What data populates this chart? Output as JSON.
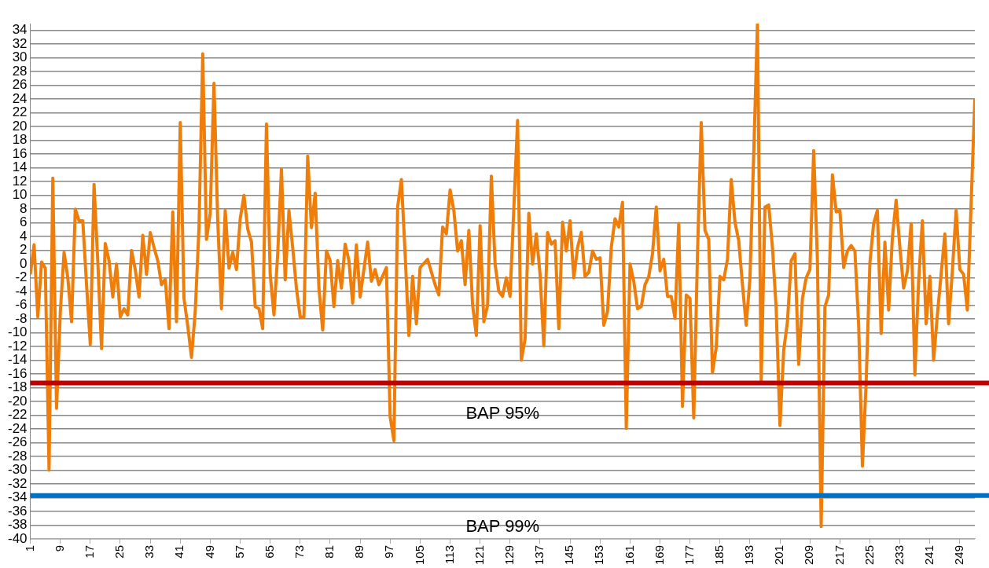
{
  "chart_data": {
    "type": "line",
    "color": "#ef7d0a",
    "x": [
      1,
      2,
      3,
      4,
      5,
      6,
      7,
      8,
      9,
      10,
      11,
      12,
      13,
      14,
      15,
      16,
      17,
      18,
      19,
      20,
      21,
      22,
      23,
      24,
      25,
      26,
      27,
      28,
      29,
      30,
      31,
      32,
      33,
      34,
      35,
      36,
      37,
      38,
      39,
      40,
      41,
      42,
      43,
      44,
      45,
      46,
      47,
      48,
      49,
      50,
      51,
      52,
      53,
      54,
      55,
      56,
      57,
      58,
      59,
      60,
      61,
      62,
      63,
      64,
      65,
      66,
      67,
      68,
      69,
      70,
      71,
      72,
      73,
      74,
      75,
      76,
      77,
      78,
      79,
      80,
      81,
      82,
      83,
      84,
      85,
      86,
      87,
      88,
      89,
      91,
      92,
      93,
      94,
      96,
      97,
      98,
      99,
      100,
      101,
      102,
      103,
      104,
      105,
      107,
      109,
      110,
      111,
      112,
      113,
      114,
      115,
      116,
      117,
      118,
      119,
      120,
      121,
      122,
      123,
      124,
      125,
      126,
      127,
      128,
      129,
      131,
      132,
      133,
      134,
      135,
      136,
      137,
      138,
      139,
      140,
      141,
      142,
      143,
      144,
      145,
      146,
      147,
      148,
      149,
      150,
      151,
      152,
      153,
      154,
      155,
      156,
      157,
      158,
      159,
      160,
      161,
      162,
      163,
      164,
      165,
      166,
      167,
      168,
      169,
      170,
      171,
      172,
      173,
      174,
      175,
      176,
      177,
      178,
      179,
      180,
      181,
      182,
      183,
      184,
      185,
      186,
      187,
      188,
      189,
      190,
      191,
      192,
      193,
      194,
      195,
      196,
      197,
      198,
      199,
      200,
      201,
      202,
      203,
      204,
      205,
      206,
      207,
      208,
      209,
      210,
      211,
      212,
      213,
      214,
      215,
      216,
      217,
      218,
      219,
      220,
      221,
      222,
      223,
      224,
      225,
      226,
      227,
      228,
      229,
      230,
      231,
      232,
      233,
      234,
      235,
      236,
      237,
      238,
      239,
      240,
      241,
      242,
      243,
      244,
      245,
      246,
      247,
      248,
      249,
      250,
      251,
      253
    ],
    "values": [
      -1.5,
      2.8,
      -7.7,
      0.3,
      -0.6,
      -30,
      12.5,
      -21,
      -7,
      1.7,
      -2,
      -8.4,
      8,
      6.3,
      6.3,
      -3,
      -11.7,
      11.6,
      0.4,
      -12.3,
      3,
      0.5,
      -4.8,
      0,
      -7.7,
      -6.5,
      -7.4,
      2,
      -0.8,
      -4.8,
      4.2,
      -1.5,
      4.6,
      2.4,
      0.5,
      -3,
      -2.2,
      -9.4,
      7.6,
      -8.4,
      20.6,
      -5,
      -9,
      -13.6,
      -6.9,
      5.3,
      30.6,
      3.6,
      7.4,
      26.3,
      6.3,
      -6.5,
      7.8,
      -0.6,
      1.7,
      -0.8,
      6.6,
      10,
      5.1,
      3.2,
      -6.2,
      -6.5,
      -9.4,
      20.4,
      -1.5,
      -7.4,
      1.5,
      13.8,
      -2.3,
      7.8,
      2.4,
      -3.5,
      -7.7,
      -7.7,
      15.7,
      5.3,
      10.3,
      -3.5,
      -9.6,
      1.9,
      0.5,
      -6.2,
      0.5,
      -3.5,
      2.9,
      0.5,
      -5.7,
      2.8,
      -4.8,
      3.2,
      -2.5,
      -0.8,
      -3,
      -0.5,
      -22.2,
      -25.7,
      8.3,
      12.3,
      1.5,
      -10.4,
      -1.8,
      -8.7,
      -0.5,
      0.7,
      -3,
      -4.5,
      5.4,
      4.4,
      10.8,
      7.8,
      1.9,
      3.4,
      -3,
      4.9,
      -6,
      -10.4,
      5.6,
      -8.4,
      -6,
      12.8,
      0,
      -4,
      -4.7,
      -2,
      -4.7,
      20.9,
      -14,
      -10.9,
      7.4,
      0,
      4.4,
      -1.5,
      -11.9,
      4.6,
      2.9,
      3.4,
      -9.4,
      6.1,
      1.9,
      6.3,
      -2,
      2.4,
      4.6,
      -1.8,
      -1.2,
      1.9,
      0.7,
      0.9,
      -8.9,
      -6.9,
      2.4,
      6.6,
      5.4,
      9,
      -23.9,
      0,
      -2.5,
      -6.5,
      -6.2,
      -3,
      -1.8,
      1.5,
      8.3,
      -1,
      0.7,
      -4.7,
      -4.7,
      -7.9,
      5.9,
      -20.7,
      -4.5,
      -5,
      -22.4,
      1.5,
      20.6,
      4.9,
      3.6,
      -15.8,
      -12.1,
      -1.8,
      -2.3,
      0.7,
      12.3,
      6.1,
      3.4,
      -3,
      -8.9,
      -2,
      16,
      35,
      -17,
      8.3,
      8.6,
      2.4,
      -6.5,
      -23.5,
      -12.6,
      -8.4,
      0.5,
      1.5,
      -14.6,
      -5,
      -2,
      -0.8,
      16.5,
      0.5,
      -38.2,
      -6.2,
      -4.5,
      13,
      7.6,
      7.8,
      -0.5,
      1.9,
      2.7,
      1.9,
      -8.9,
      -29.4,
      -17.3,
      0.2,
      5.9,
      7.8,
      -10.1,
      3.2,
      -6.7,
      3.9,
      9.3,
      2.4,
      -3.5,
      -1,
      5.9,
      -16.1,
      -2.5,
      6.3,
      -8.7,
      -1.8,
      -14,
      -7.4,
      -1.5,
      4.4,
      -8.7,
      -1,
      7.8,
      -0.8,
      -1.5,
      -6.7,
      24.1
    ],
    "xlim": [
      1,
      253
    ],
    "xticks": [
      1,
      9,
      17,
      25,
      33,
      41,
      49,
      57,
      65,
      73,
      81,
      89,
      97,
      105,
      113,
      121,
      129,
      137,
      145,
      153,
      161,
      169,
      177,
      185,
      193,
      201,
      209,
      217,
      225,
      233,
      241,
      249
    ],
    "ylim": [
      -40,
      35
    ],
    "yticks": [
      -40,
      -38,
      -36,
      -34,
      -32,
      -30,
      -28,
      -26,
      -24,
      -22,
      -20,
      -18,
      -16,
      -14,
      -12,
      -10,
      -8,
      -6,
      -4,
      -2,
      0,
      2,
      4,
      6,
      8,
      10,
      12,
      14,
      16,
      18,
      20,
      22,
      24,
      26,
      28,
      30,
      32,
      34
    ],
    "grid": "y",
    "ref_lines": [
      {
        "axis": "y",
        "value": -17.3,
        "label": "BAP 95%",
        "color": "#c00000"
      },
      {
        "axis": "y",
        "value": -33.7,
        "label": "BAP 99%",
        "color": "#0070c0"
      }
    ]
  }
}
